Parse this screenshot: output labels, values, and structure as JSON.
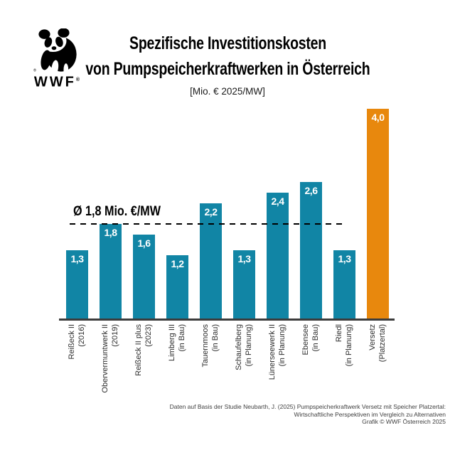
{
  "brand": {
    "logo_text": "WWF",
    "registered_mark": "®"
  },
  "header": {
    "title_line1": "Spezifische Investitionskosten",
    "title_line2": "von Pumpspeicherkraftwerken in Österreich",
    "unit_label": "[Mio. € 2025/MW]"
  },
  "chart_data": {
    "type": "bar",
    "title": "Spezifische Investitionskosten von Pumpspeicherkraftwerken in Österreich",
    "ylabel": "Mio. € 2025/MW",
    "ylim": [
      0,
      4.05
    ],
    "grid": false,
    "legend": "none",
    "categories": [
      {
        "name": "Reißeck II",
        "status": "(2016)"
      },
      {
        "name": "Obervermuntwerk II",
        "status": "(2019)"
      },
      {
        "name": "Reißeck II plus",
        "status": "(2023)"
      },
      {
        "name": "Limberg III",
        "status": "(in Bau)"
      },
      {
        "name": "Tauernmoos",
        "status": "(in Bau)"
      },
      {
        "name": "Schaufelberg",
        "status": "(in Planung)"
      },
      {
        "name": "Lünerseewerk II",
        "status": "(in Planung)"
      },
      {
        "name": "Ebensee",
        "status": "(in Bau)"
      },
      {
        "name": "Riedl",
        "status": "(in Planung)"
      },
      {
        "name": "Versetz",
        "status": "(Platzertal)"
      }
    ],
    "values": [
      1.3,
      1.8,
      1.6,
      1.2,
      2.2,
      1.3,
      2.4,
      2.6,
      1.3,
      4.0
    ],
    "value_labels": [
      "1,3",
      "1,8",
      "1,6",
      "1,2",
      "2,2",
      "1,3",
      "2,4",
      "2,6",
      "1,3",
      "4,0"
    ],
    "average_line": {
      "value": 1.8,
      "label": "Ø 1,8 Mio. €/MW"
    },
    "highlight_index": 9,
    "colors": {
      "bar": "#1185A5",
      "highlight": "#E8880D",
      "axis": "#3C3C3C",
      "value_text": "#FFFFFF"
    }
  },
  "footer": {
    "lines": [
      "Daten auf Basis der Studie Neubarth, J. (2025) Pumpspeicherkraftwerk Versetz mit Speicher Platzertal:",
      "Wirtschaftliche Perspektiven im Vergleich zu Alternativen",
      "Grafik © WWF Österreich 2025"
    ]
  }
}
